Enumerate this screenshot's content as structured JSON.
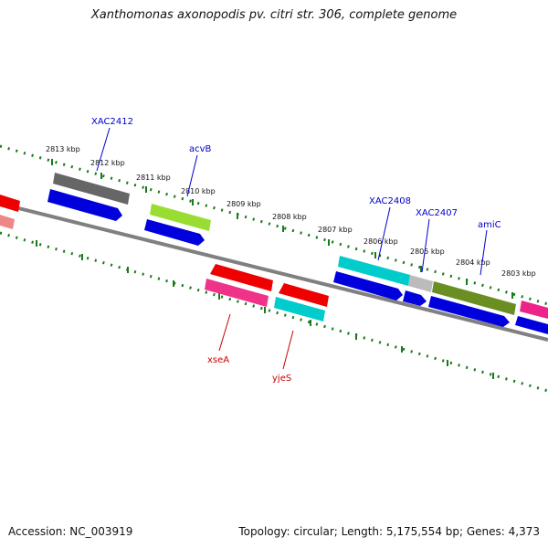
{
  "title": "Xanthomonas axonopodis pv. citri str. 306, complete genome",
  "footer": {
    "accession": "Accession: NC_003919",
    "summary": "Topology: circular; Length: 5,175,554 bp; Genes: 4,373"
  },
  "scale_labels": [
    "2813 kbp",
    "2812 kbp",
    "2811 kbp",
    "2810 kbp",
    "2809 kbp",
    "2808 kbp",
    "2807 kbp",
    "2806 kbp",
    "2805 kbp",
    "2804 kbp",
    "2803 kbp"
  ],
  "gene_labels": [
    {
      "text": "XAC2412",
      "color": "#0000cc"
    },
    {
      "text": "acvB",
      "color": "#0000cc"
    },
    {
      "text": "XAC2408",
      "color": "#0000cc"
    },
    {
      "text": "XAC2407",
      "color": "#0000cc"
    },
    {
      "text": "amiC",
      "color": "#0000cc"
    },
    {
      "text": "xseA",
      "color": "#cc0000"
    },
    {
      "text": "yjeS",
      "color": "#cc0000"
    }
  ],
  "colors": {
    "backbone": "#808080",
    "dots": "#1a7a1a",
    "blue": "#0000dd",
    "red": "#ee0000",
    "pink": "#ee3388",
    "cyan": "#00cccc",
    "grey": "#666666",
    "lightgrey": "#bbbbbb",
    "lime": "#99dd33",
    "olive": "#6b8e23",
    "magenta": "#ee2288",
    "lightred": "#ee8888"
  }
}
